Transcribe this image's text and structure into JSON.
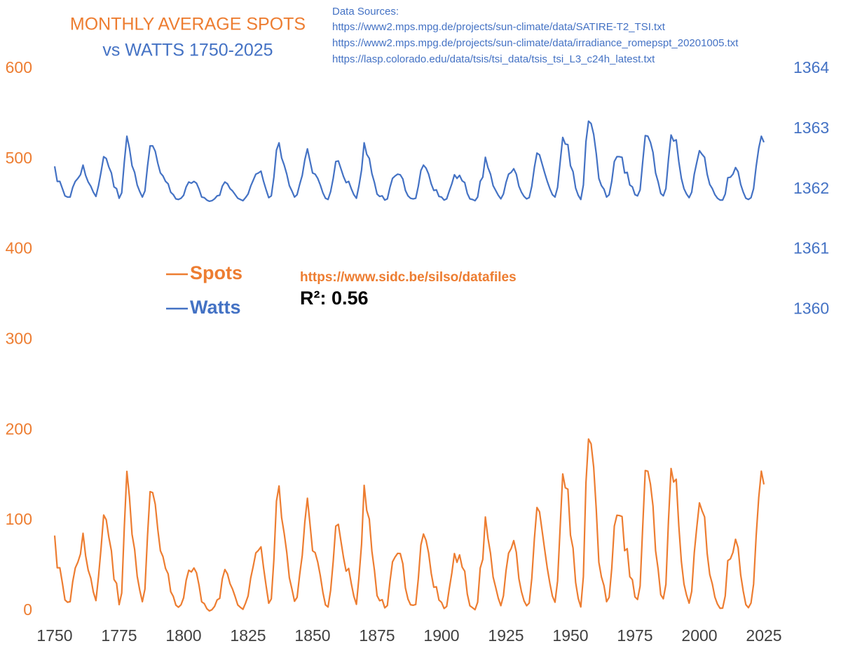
{
  "chart_data": {
    "type": "line",
    "title": "MONTHLY AVERAGE SPOTS",
    "subtitle": "vs WATTS 1750-2025",
    "sources": {
      "heading": "Data Sources:",
      "urls": [
        "https://www2.mps.mpg.de/projects/sun-climate/data/SATIRE-T2_TSI.txt",
        "https://www2.mps.mpg.de/projects/sun-climate/data/irradiance_romepspt_20201005.txt",
        "https://lasp.colorado.edu/data/tsis/tsi_data/tsis_tsi_L3_c24h_latest.txt"
      ]
    },
    "annotations": [
      "https://www.sidc.be/silso/datafiles",
      "R²: 0.56"
    ],
    "xlim": [
      1750,
      2025
    ],
    "xticks": [
      1750,
      1775,
      1800,
      1825,
      1850,
      1875,
      1900,
      1925,
      1950,
      1975,
      2000,
      2025
    ],
    "ylim": [
      0,
      600
    ],
    "yticks": [
      0,
      100,
      200,
      300,
      400,
      500,
      600
    ],
    "y2lim": [
      1355,
      1364
    ],
    "y2ticks": [
      1360,
      1361,
      1362,
      1363,
      1364
    ],
    "grid": false,
    "x": [
      1750,
      1751,
      1752,
      1753,
      1754,
      1755,
      1756,
      1757,
      1758,
      1759,
      1760,
      1761,
      1762,
      1763,
      1764,
      1765,
      1766,
      1767,
      1768,
      1769,
      1770,
      1771,
      1772,
      1773,
      1774,
      1775,
      1776,
      1777,
      1778,
      1779,
      1780,
      1781,
      1782,
      1783,
      1784,
      1785,
      1786,
      1787,
      1788,
      1789,
      1790,
      1791,
      1792,
      1793,
      1794,
      1795,
      1796,
      1797,
      1798,
      1799,
      1800,
      1801,
      1802,
      1803,
      1804,
      1805,
      1806,
      1807,
      1808,
      1809,
      1810,
      1811,
      1812,
      1813,
      1814,
      1815,
      1816,
      1817,
      1818,
      1819,
      1820,
      1821,
      1822,
      1823,
      1824,
      1825,
      1826,
      1827,
      1828,
      1829,
      1830,
      1831,
      1832,
      1833,
      1834,
      1835,
      1836,
      1837,
      1838,
      1839,
      1840,
      1841,
      1842,
      1843,
      1844,
      1845,
      1846,
      1847,
      1848,
      1849,
      1850,
      1851,
      1852,
      1853,
      1854,
      1855,
      1856,
      1857,
      1858,
      1859,
      1860,
      1861,
      1862,
      1863,
      1864,
      1865,
      1866,
      1867,
      1868,
      1869,
      1870,
      1871,
      1872,
      1873,
      1874,
      1875,
      1876,
      1877,
      1878,
      1879,
      1880,
      1881,
      1882,
      1883,
      1884,
      1885,
      1886,
      1887,
      1888,
      1889,
      1890,
      1891,
      1892,
      1893,
      1894,
      1895,
      1896,
      1897,
      1898,
      1899,
      1900,
      1901,
      1902,
      1903,
      1904,
      1905,
      1906,
      1907,
      1908,
      1909,
      1910,
      1911,
      1912,
      1913,
      1914,
      1915,
      1916,
      1917,
      1918,
      1919,
      1920,
      1921,
      1922,
      1923,
      1924,
      1925,
      1926,
      1927,
      1928,
      1929,
      1930,
      1931,
      1932,
      1933,
      1934,
      1935,
      1936,
      1937,
      1938,
      1939,
      1940,
      1941,
      1942,
      1943,
      1944,
      1945,
      1946,
      1947,
      1948,
      1949,
      1950,
      1951,
      1952,
      1953,
      1954,
      1955,
      1956,
      1957,
      1958,
      1959,
      1960,
      1961,
      1962,
      1963,
      1964,
      1965,
      1966,
      1967,
      1968,
      1969,
      1970,
      1971,
      1972,
      1973,
      1974,
      1975,
      1976,
      1977,
      1978,
      1979,
      1980,
      1981,
      1982,
      1983,
      1984,
      1985,
      1986,
      1987,
      1988,
      1989,
      1990,
      1991,
      1992,
      1993,
      1994,
      1995,
      1996,
      1997,
      1998,
      1999,
      2000,
      2001,
      2002,
      2003,
      2004,
      2005,
      2006,
      2007,
      2008,
      2009,
      2010,
      2011,
      2012,
      2013,
      2014,
      2015,
      2016,
      2017,
      2018,
      2019,
      2020,
      2021,
      2022,
      2023,
      2024,
      2025
    ],
    "series": [
      {
        "name": "Spots",
        "color": "#ed7d31",
        "values": [
          83.4,
          47.7,
          47.8,
          30.7,
          12.2,
          9.6,
          10.2,
          32.4,
          47.6,
          54.0,
          62.9,
          85.9,
          61.2,
          45.1,
          36.4,
          20.9,
          11.4,
          37.8,
          69.8,
          106.1,
          100.8,
          81.6,
          66.5,
          34.8,
          30.6,
          7.0,
          19.8,
          92.5,
          154.4,
          125.9,
          84.8,
          68.1,
          38.5,
          22.8,
          10.2,
          24.1,
          82.9,
          132.0,
          130.9,
          118.1,
          89.9,
          66.6,
          60.0,
          46.9,
          41.0,
          21.3,
          16.0,
          6.4,
          4.1,
          6.8,
          14.5,
          34.0,
          45.0,
          43.1,
          47.5,
          42.2,
          28.1,
          10.1,
          8.1,
          2.5,
          0.0,
          1.4,
          5.0,
          12.2,
          13.9,
          35.4,
          45.8,
          41.0,
          30.1,
          23.9,
          15.6,
          6.6,
          4.0,
          1.8,
          8.5,
          16.6,
          36.3,
          49.6,
          64.2,
          67.0,
          70.9,
          47.8,
          27.5,
          8.5,
          13.2,
          56.9,
          121.5,
          138.3,
          103.2,
          85.7,
          64.6,
          36.7,
          24.2,
          10.7,
          15.0,
          40.1,
          61.5,
          98.5,
          124.7,
          96.3,
          66.6,
          64.5,
          54.1,
          39.0,
          20.6,
          6.7,
          4.3,
          22.7,
          54.8,
          93.8,
          95.8,
          77.2,
          59.1,
          44.0,
          47.0,
          30.5,
          16.3,
          7.3,
          37.6,
          74.0,
          139.0,
          111.2,
          101.6,
          66.2,
          44.7,
          17.0,
          11.3,
          12.4,
          3.4,
          6.0,
          32.3,
          54.3,
          59.7,
          63.7,
          63.5,
          52.2,
          25.4,
          13.1,
          6.8,
          6.3,
          7.1,
          35.6,
          73.0,
          85.1,
          78.0,
          64.0,
          41.8,
          26.2,
          26.7,
          12.1,
          9.5,
          2.7,
          5.0,
          24.4,
          42.0,
          63.5,
          53.8,
          62.0,
          48.5,
          43.9,
          18.6,
          5.7,
          3.6,
          1.4,
          9.6,
          47.4,
          57.1,
          103.9,
          80.6,
          63.6,
          37.6,
          26.1,
          14.2,
          5.8,
          16.7,
          44.3,
          63.9,
          69.0,
          77.8,
          64.9,
          35.7,
          21.2,
          11.1,
          5.7,
          8.7,
          36.1,
          79.7,
          114.4,
          109.6,
          88.8,
          67.8,
          47.5,
          30.6,
          16.3,
          9.6,
          33.2,
          92.6,
          151.6,
          136.3,
          134.7,
          83.9,
          69.4,
          31.5,
          13.9,
          4.4,
          38.0,
          141.7,
          190.2,
          184.8,
          159.0,
          112.3,
          53.9,
          37.6,
          27.9,
          10.2,
          15.1,
          47.0,
          93.8,
          105.9,
          105.5,
          104.5,
          66.6,
          68.9,
          38.0,
          34.5,
          15.5,
          12.6,
          27.5,
          92.5,
          155.4,
          154.6,
          140.4,
          115.9,
          66.6,
          45.9,
          17.9,
          13.4,
          29.4,
          100.2,
          157.6,
          142.6,
          145.7,
          94.3,
          54.6,
          29.9,
          17.5,
          8.6,
          21.5,
          64.3,
          93.3,
          119.6,
          111.0,
          104.0,
          63.7,
          40.4,
          29.8,
          15.2,
          7.5,
          2.9,
          3.1,
          16.5,
          55.7,
          57.6,
          64.7,
          79.3,
          69.8,
          39.8,
          21.7,
          7.0,
          3.6,
          8.8,
          29.6,
          83.2,
          125.5,
          154.7,
          140.0
        ]
      },
      {
        "name": "Watts",
        "color": "#4472c4",
        "axis": "y2",
        "values": [
          1362.38,
          1362.13,
          1362.13,
          1362.01,
          1361.89,
          1361.87,
          1361.87,
          1362.03,
          1362.13,
          1362.18,
          1362.24,
          1362.4,
          1362.23,
          1362.12,
          1362.05,
          1361.95,
          1361.88,
          1362.06,
          1362.29,
          1362.54,
          1362.51,
          1362.37,
          1362.27,
          1362.04,
          1362.01,
          1361.85,
          1361.94,
          1362.45,
          1362.88,
          1362.68,
          1362.39,
          1362.28,
          1362.07,
          1361.96,
          1361.87,
          1361.97,
          1362.38,
          1362.72,
          1362.72,
          1362.63,
          1362.43,
          1362.27,
          1362.22,
          1362.13,
          1362.09,
          1361.95,
          1361.91,
          1361.84,
          1361.83,
          1361.85,
          1361.9,
          1362.04,
          1362.12,
          1362.1,
          1362.13,
          1362.1,
          1362.0,
          1361.87,
          1361.86,
          1361.82,
          1361.8,
          1361.81,
          1361.84,
          1361.89,
          1361.9,
          1362.05,
          1362.12,
          1362.09,
          1362.01,
          1361.97,
          1361.91,
          1361.85,
          1361.83,
          1361.81,
          1361.86,
          1361.92,
          1362.05,
          1362.15,
          1362.25,
          1362.27,
          1362.3,
          1362.13,
          1361.99,
          1361.86,
          1361.89,
          1362.2,
          1362.65,
          1362.77,
          1362.52,
          1362.4,
          1362.25,
          1362.06,
          1361.97,
          1361.87,
          1361.91,
          1362.08,
          1362.23,
          1362.49,
          1362.67,
          1362.47,
          1362.27,
          1362.25,
          1362.18,
          1362.07,
          1361.94,
          1361.85,
          1361.83,
          1361.96,
          1362.18,
          1362.46,
          1362.47,
          1362.34,
          1362.21,
          1362.11,
          1362.13,
          1362.01,
          1361.91,
          1361.85,
          1362.06,
          1362.32,
          1362.77,
          1362.58,
          1362.51,
          1362.26,
          1362.11,
          1361.92,
          1361.88,
          1361.89,
          1361.82,
          1361.84,
          1362.03,
          1362.18,
          1362.22,
          1362.25,
          1362.24,
          1362.17,
          1361.98,
          1361.89,
          1361.85,
          1361.84,
          1361.85,
          1362.05,
          1362.31,
          1362.4,
          1362.35,
          1362.25,
          1362.09,
          1361.98,
          1361.99,
          1361.88,
          1361.87,
          1361.82,
          1361.84,
          1361.97,
          1362.09,
          1362.24,
          1362.18,
          1362.23,
          1362.14,
          1362.11,
          1361.93,
          1361.84,
          1361.83,
          1361.81,
          1361.87,
          1362.13,
          1362.2,
          1362.53,
          1362.36,
          1362.25,
          1362.06,
          1361.98,
          1361.9,
          1361.84,
          1361.92,
          1362.11,
          1362.25,
          1362.28,
          1362.34,
          1362.25,
          1362.05,
          1361.95,
          1361.88,
          1361.84,
          1361.86,
          1362.05,
          1362.36,
          1362.6,
          1362.57,
          1362.42,
          1362.27,
          1362.13,
          1362.01,
          1361.91,
          1361.87,
          1362.03,
          1362.45,
          1362.86,
          1362.75,
          1362.74,
          1362.39,
          1362.29,
          1362.02,
          1361.9,
          1361.83,
          1362.07,
          1362.79,
          1363.13,
          1363.09,
          1362.91,
          1362.59,
          1362.18,
          1362.06,
          1362.0,
          1361.87,
          1361.91,
          1362.13,
          1362.46,
          1362.54,
          1362.54,
          1362.53,
          1362.27,
          1362.28,
          1362.07,
          1362.04,
          1361.91,
          1361.89,
          1361.99,
          1362.45,
          1362.89,
          1362.88,
          1362.78,
          1362.61,
          1362.27,
          1362.12,
          1361.93,
          1361.89,
          1362.01,
          1362.5,
          1362.9,
          1362.8,
          1362.82,
          1362.46,
          1362.18,
          1362.01,
          1361.92,
          1361.86,
          1361.95,
          1362.25,
          1362.45,
          1362.64,
          1362.58,
          1362.53,
          1362.25,
          1362.08,
          1362.01,
          1361.91,
          1361.85,
          1361.82,
          1361.82,
          1361.92,
          1362.19,
          1362.2,
          1362.25,
          1362.36,
          1362.29,
          1362.08,
          1361.95,
          1361.85,
          1361.83,
          1361.86,
          1362.01,
          1362.38,
          1362.68,
          1362.88,
          1362.78
        ]
      }
    ]
  }
}
